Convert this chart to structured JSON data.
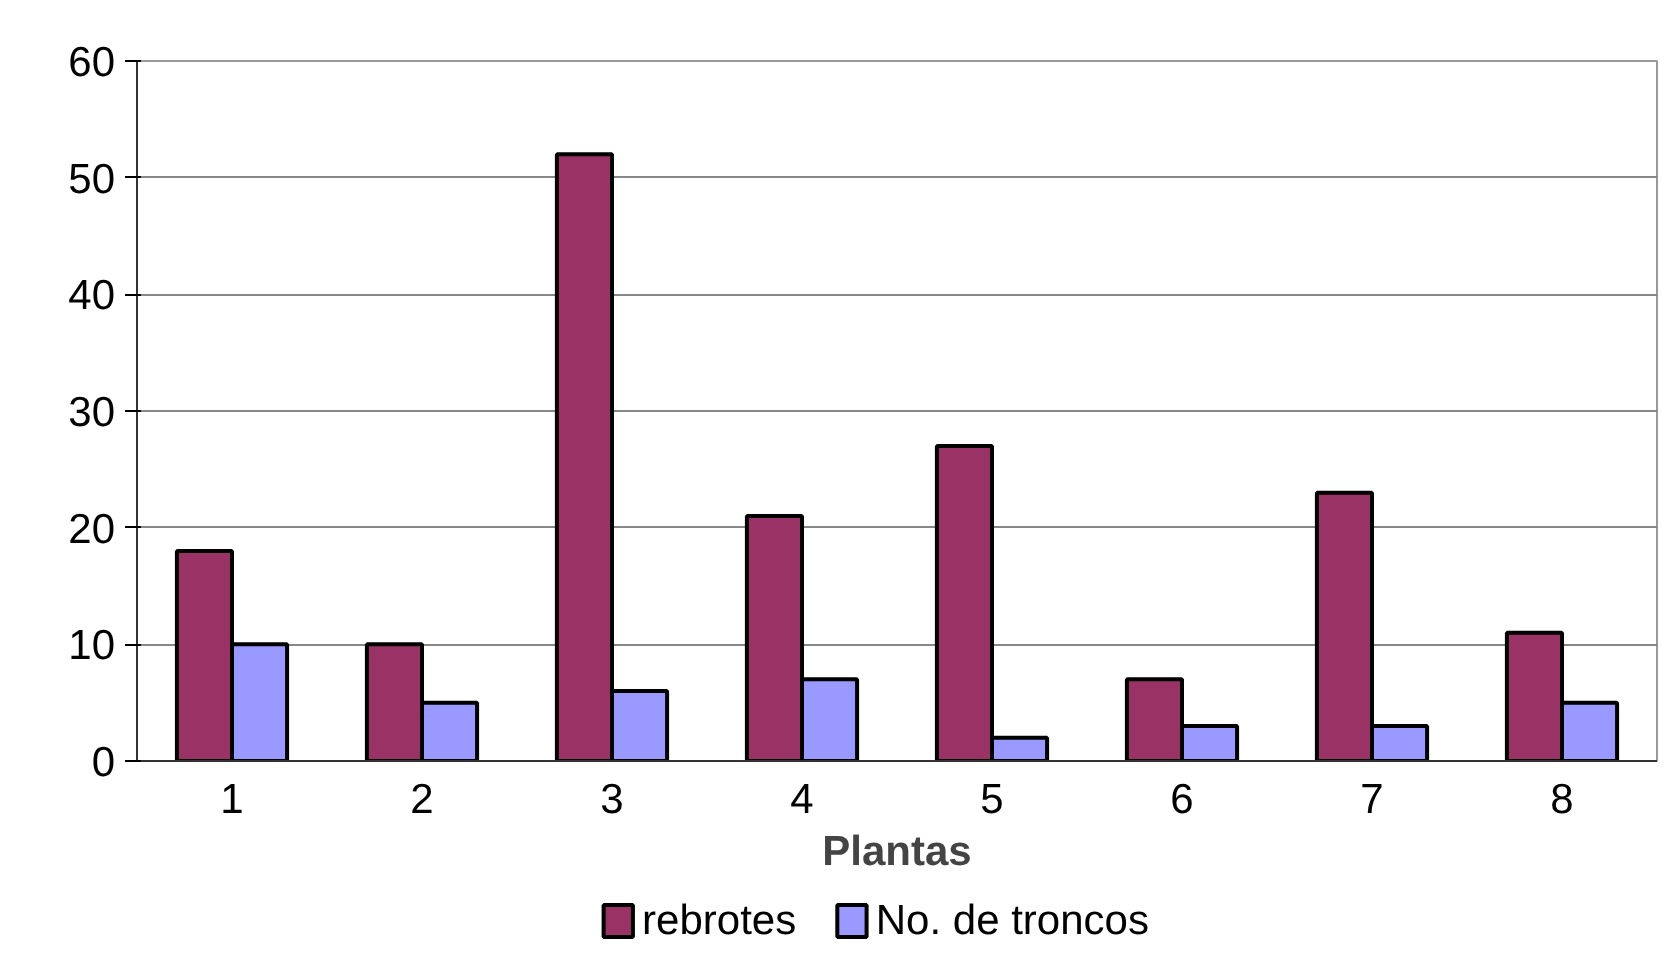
{
  "chart_data": {
    "type": "bar",
    "xlabel": "Plantas",
    "categories": [
      "1",
      "2",
      "3",
      "4",
      "5",
      "6",
      "7",
      "8"
    ],
    "series": [
      {
        "name": "rebrotes",
        "color": "#993366",
        "values": [
          18,
          10,
          52,
          21,
          27,
          7,
          23,
          11
        ]
      },
      {
        "name": "No. de troncos",
        "color": "#9999ff",
        "values": [
          10,
          5,
          6,
          7,
          2,
          3,
          3,
          5
        ]
      }
    ],
    "ylim": [
      0,
      60
    ],
    "yticks": [
      0,
      10,
      20,
      30,
      40,
      50,
      60
    ],
    "grid": "y",
    "legend": "bottom"
  }
}
